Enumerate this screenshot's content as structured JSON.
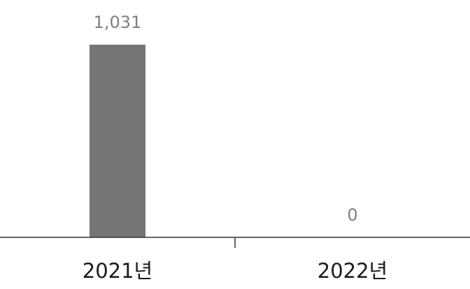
{
  "chart_data": {
    "type": "bar",
    "categories": [
      "2021년",
      "2022년"
    ],
    "values": [
      1031,
      0
    ],
    "value_labels": [
      "1,031",
      "0"
    ],
    "title": "",
    "xlabel": "",
    "ylabel": "",
    "ylim": [
      0,
      1031
    ],
    "grid": false,
    "legend": "none",
    "colors": {
      "bar": "#757575",
      "axis": "#333333",
      "data_label": "#808080",
      "tick_label": "#1a1a1a"
    }
  }
}
